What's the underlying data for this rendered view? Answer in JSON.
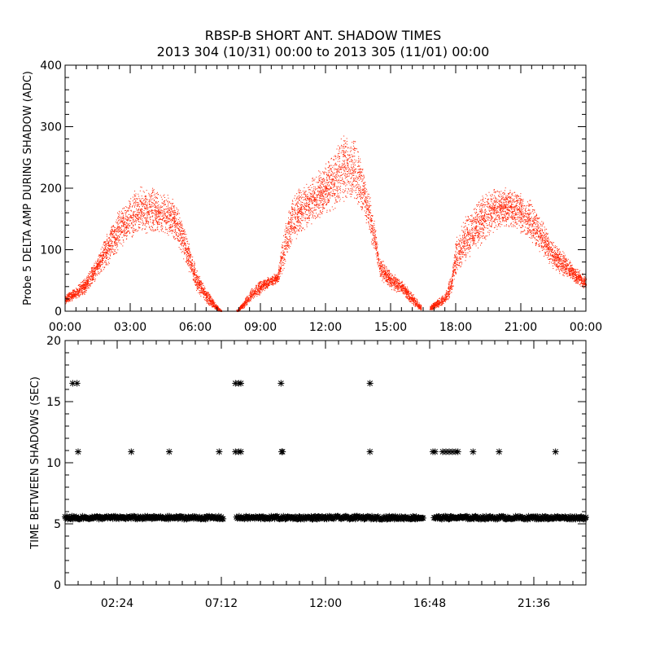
{
  "title_line1": "RBSP-B SHORT ANT. SHADOW TIMES",
  "title_line2": "2013 304 (10/31) 00:00 to 2013 305 (11/01) 00:00",
  "chart_data": [
    {
      "type": "scatter",
      "ylabel": "Probe 5 DELTA AMP DURING SHADOW (ADC)",
      "xlim_hours": [
        0,
        24
      ],
      "ylim": [
        0,
        400
      ],
      "xtick_labels": [
        "00:00",
        "03:00",
        "06:00",
        "09:00",
        "12:00",
        "15:00",
        "18:00",
        "21:00",
        "00:00"
      ],
      "ytick_labels": [
        "0",
        "100",
        "200",
        "300",
        "400"
      ],
      "color": "#ff2000",
      "envelope": {
        "segments": [
          {
            "x": [
              0.0,
              0.5,
              1.0,
              1.5,
              2.0,
              2.5,
              3.0,
              3.5,
              4.0,
              4.5,
              5.0,
              5.5,
              6.0,
              6.5,
              7.0,
              7.2
            ],
            "y": [
              20,
              30,
              45,
              75,
              105,
              135,
              155,
              165,
              165,
              160,
              150,
              110,
              55,
              25,
              5,
              0
            ],
            "spread": [
              8,
              10,
              15,
              20,
              30,
              35,
              40,
              40,
              40,
              40,
              35,
              30,
              20,
              12,
              5,
              2
            ]
          },
          {
            "x": [
              7.9,
              8.2,
              8.5,
              9.0,
              9.5,
              9.8,
              10.0,
              10.3,
              10.5,
              11.0,
              11.5,
              12.0,
              12.5,
              13.0,
              13.5,
              13.8,
              14.0,
              14.3,
              14.5,
              15.0,
              15.5,
              16.0,
              16.4
            ],
            "y": [
              0,
              10,
              25,
              40,
              50,
              55,
              90,
              130,
              150,
              170,
              185,
              200,
              220,
              240,
              220,
              190,
              160,
              110,
              70,
              50,
              40,
              20,
              5
            ],
            "spread": [
              2,
              6,
              10,
              12,
              10,
              10,
              30,
              40,
              40,
              40,
              40,
              45,
              55,
              60,
              50,
              40,
              35,
              30,
              20,
              15,
              12,
              10,
              5
            ]
          },
          {
            "x": [
              16.8,
              17.0,
              17.5,
              17.8,
              18.0,
              18.5,
              19.0,
              19.5,
              20.0,
              20.5,
              21.0,
              21.5,
              22.0,
              22.5,
              23.0,
              23.5,
              24.0
            ],
            "y": [
              5,
              10,
              20,
              45,
              90,
              120,
              140,
              160,
              170,
              170,
              160,
              145,
              120,
              90,
              75,
              60,
              45
            ],
            "spread": [
              4,
              6,
              10,
              20,
              35,
              40,
              40,
              40,
              35,
              35,
              35,
              35,
              30,
              25,
              20,
              15,
              10
            ]
          }
        ]
      }
    },
    {
      "type": "scatter",
      "ylabel": "TIME BETWEEN SHADOWS (SEC)",
      "xlim_hours": [
        0,
        24
      ],
      "ylim": [
        0,
        20
      ],
      "xtick_labels": [
        "02:24",
        "07:12",
        "12:00",
        "16:48",
        "21:36"
      ],
      "ytick_labels": [
        "0",
        "5",
        "10",
        "15",
        "20"
      ],
      "color": "#000000",
      "marker": "*",
      "baseline_value": 5.5,
      "baseline_segments": [
        [
          0.0,
          7.3
        ],
        [
          7.9,
          16.5
        ],
        [
          17.0,
          24.0
        ]
      ],
      "points": [
        {
          "x": 0.35,
          "y": 16.5
        },
        {
          "x": 0.55,
          "y": 16.5
        },
        {
          "x": 0.6,
          "y": 10.9
        },
        {
          "x": 3.05,
          "y": 10.9
        },
        {
          "x": 4.8,
          "y": 10.9
        },
        {
          "x": 7.1,
          "y": 10.9
        },
        {
          "x": 7.85,
          "y": 16.5
        },
        {
          "x": 8.0,
          "y": 16.5
        },
        {
          "x": 8.1,
          "y": 16.5
        },
        {
          "x": 7.85,
          "y": 10.9
        },
        {
          "x": 8.0,
          "y": 10.9
        },
        {
          "x": 8.1,
          "y": 10.9
        },
        {
          "x": 9.95,
          "y": 16.5
        },
        {
          "x": 9.98,
          "y": 10.9
        },
        {
          "x": 10.02,
          "y": 10.9
        },
        {
          "x": 14.05,
          "y": 16.5
        },
        {
          "x": 14.05,
          "y": 10.9
        },
        {
          "x": 16.95,
          "y": 10.9
        },
        {
          "x": 17.05,
          "y": 10.9
        },
        {
          "x": 17.4,
          "y": 10.9
        },
        {
          "x": 17.55,
          "y": 10.9
        },
        {
          "x": 17.7,
          "y": 10.9
        },
        {
          "x": 17.85,
          "y": 10.9
        },
        {
          "x": 18.0,
          "y": 10.9
        },
        {
          "x": 18.1,
          "y": 10.9
        },
        {
          "x": 18.8,
          "y": 10.9
        },
        {
          "x": 20.0,
          "y": 10.9
        },
        {
          "x": 22.6,
          "y": 10.9
        }
      ]
    }
  ]
}
